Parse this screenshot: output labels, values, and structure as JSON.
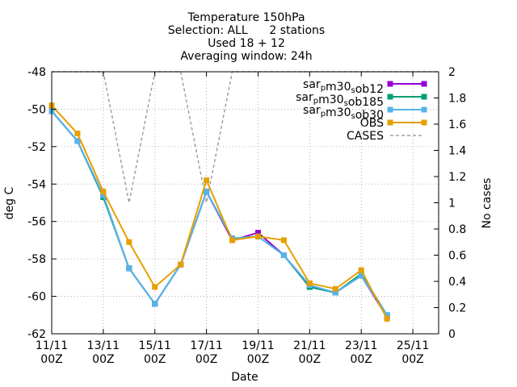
{
  "chart_data": {
    "type": "line",
    "title_lines": [
      "Temperature 150hPa",
      "Selection: ALL      2 stations",
      "Used 18 + 12",
      "Averaging window: 24h"
    ],
    "xlabel": "Date",
    "ylabel": "deg C",
    "y2label": "No cases",
    "xlim": [
      0,
      15
    ],
    "ylim": [
      -62,
      -48
    ],
    "y2lim": [
      0,
      2
    ],
    "x_ticks": [
      {
        "x": 0,
        "line1": "11/11",
        "line2": "00Z"
      },
      {
        "x": 2,
        "line1": "13/11",
        "line2": "00Z"
      },
      {
        "x": 4,
        "line1": "15/11",
        "line2": "00Z"
      },
      {
        "x": 6,
        "line1": "17/11",
        "line2": "00Z"
      },
      {
        "x": 8,
        "line1": "19/11",
        "line2": "00Z"
      },
      {
        "x": 10,
        "line1": "21/11",
        "line2": "00Z"
      },
      {
        "x": 12,
        "line1": "23/11",
        "line2": "00Z"
      },
      {
        "x": 14,
        "line1": "25/11",
        "line2": "00Z"
      }
    ],
    "y_ticks": [
      -48,
      -50,
      -52,
      -54,
      -56,
      -58,
      -60,
      -62
    ],
    "y_tick_labels": [
      "-48",
      "-50",
      "-52",
      "-54",
      "-56",
      "-58",
      "-60",
      "-62"
    ],
    "y2_ticks": [
      2,
      1.8,
      1.6,
      1.4,
      1.2,
      1,
      0.8,
      0.6,
      0.4,
      0.2,
      0
    ],
    "y2_tick_labels": [
      "2",
      "1.8",
      "1.6",
      "1.4",
      "1.2",
      "1",
      "0.8",
      "0.6",
      "0.4",
      "0.2",
      "0"
    ],
    "grid": true,
    "legend_position": "top-right",
    "series": [
      {
        "legend_main": "sar",
        "legend_sub1": "p",
        "legend_mid": "m30",
        "legend_sub2": "s",
        "legend_tail": "ob12",
        "color": "#9400d3",
        "x": [
          0,
          1,
          2,
          3,
          4,
          5,
          6,
          7,
          8,
          9,
          10,
          11,
          12,
          13
        ],
        "values": [
          -50.1,
          -51.7,
          -54.7,
          -58.5,
          -60.4,
          -58.3,
          -54.4,
          -57.0,
          -56.6,
          -57.8,
          -59.5,
          -59.8,
          -58.9,
          -61.1
        ]
      },
      {
        "legend_main": "sar",
        "legend_sub1": "p",
        "legend_mid": "m30",
        "legend_sub2": "s",
        "legend_tail": "ob185",
        "color": "#009e73",
        "x": [
          0,
          1,
          2,
          3,
          4,
          5,
          6,
          7,
          8,
          9,
          10,
          11,
          12,
          13
        ],
        "values": [
          -50.1,
          -51.7,
          -54.7,
          -58.5,
          -60.4,
          -58.3,
          -54.4,
          -56.9,
          -56.8,
          -57.8,
          -59.5,
          -59.8,
          -58.8,
          -61.0
        ]
      },
      {
        "legend_main": "sar",
        "legend_sub1": "p",
        "legend_mid": "m30",
        "legend_sub2": "s",
        "legend_tail": "ob30",
        "color": "#56b4e9",
        "x": [
          0,
          1,
          2,
          3,
          4,
          5,
          6,
          7,
          8,
          9,
          10,
          11,
          12,
          13
        ],
        "values": [
          -50.1,
          -51.7,
          -54.6,
          -58.5,
          -60.4,
          -58.3,
          -54.4,
          -56.9,
          -56.8,
          -57.8,
          -59.4,
          -59.8,
          -58.9,
          -61.0
        ]
      },
      {
        "legend_main": "OBS",
        "color": "#e69f00",
        "x": [
          0,
          1,
          2,
          3,
          4,
          5,
          6,
          7,
          8,
          9,
          10,
          11,
          12,
          13
        ],
        "values": [
          -49.8,
          -51.3,
          -54.4,
          -57.1,
          -59.5,
          -58.3,
          -53.8,
          -57.0,
          -56.8,
          -57.0,
          -59.3,
          -59.6,
          -58.6,
          -61.2
        ]
      }
    ],
    "cases": {
      "legend_main": "CASES",
      "color": "#a0a0a0",
      "x": [
        0,
        2,
        3,
        4,
        5,
        6,
        7,
        15
      ],
      "values": [
        2,
        2,
        1,
        2,
        2,
        1,
        2,
        2
      ]
    }
  }
}
